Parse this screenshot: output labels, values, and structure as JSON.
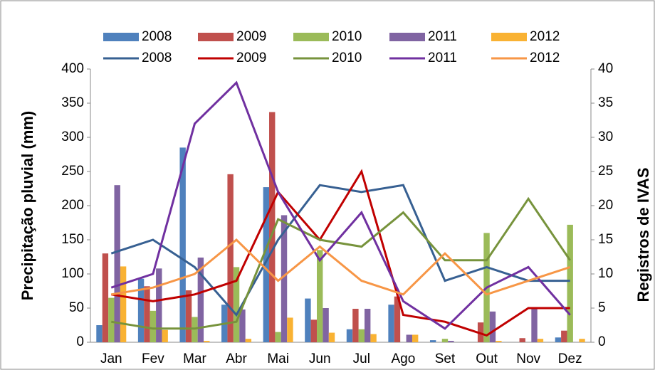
{
  "chart_data": {
    "type": "bar",
    "categories": [
      "Jan",
      "Fev",
      "Mar",
      "Abr",
      "Mai",
      "Jun",
      "Jul",
      "Ago",
      "Set",
      "Out",
      "Nov",
      "Dez"
    ],
    "y_label": "Precipitação  pluvial (mm)",
    "y2_label": "Registros de IVAS",
    "ylim": [
      0,
      400
    ],
    "yticks": [
      0,
      50,
      100,
      150,
      200,
      250,
      300,
      350,
      400
    ],
    "y2lim": [
      0,
      40
    ],
    "y2ticks": [
      0,
      5,
      10,
      15,
      20,
      25,
      30,
      35,
      40
    ],
    "series": [
      {
        "name": "2008",
        "type": "bar",
        "color": "#4f81bd",
        "values": [
          25,
          93,
          285,
          55,
          227,
          64,
          19,
          55,
          3,
          0,
          0,
          7
        ]
      },
      {
        "name": "2009",
        "type": "bar",
        "color": "#c0504d",
        "values": [
          130,
          82,
          76,
          246,
          337,
          33,
          49,
          67,
          0,
          29,
          6,
          17
        ]
      },
      {
        "name": "2010",
        "type": "bar",
        "color": "#9bbb59",
        "values": [
          65,
          46,
          37,
          110,
          15,
          135,
          19,
          0,
          5,
          160,
          0,
          172
        ]
      },
      {
        "name": "2011",
        "type": "bar",
        "color": "#8064a2",
        "values": [
          230,
          108,
          124,
          48,
          186,
          50,
          49,
          11,
          2,
          45,
          50,
          0
        ]
      },
      {
        "name": "2012",
        "type": "bar",
        "color": "#f9b233",
        "values": [
          111,
          18,
          2,
          5,
          36,
          14,
          12,
          11,
          0,
          2,
          5,
          5
        ]
      },
      {
        "name": "2008",
        "type": "line",
        "axis": "y2",
        "color": "#376092",
        "values": [
          13,
          15,
          11,
          4,
          15,
          23,
          22,
          23,
          9,
          11,
          9,
          9
        ]
      },
      {
        "name": "2009",
        "type": "line",
        "axis": "y2",
        "color": "#c00000",
        "values": [
          7,
          6,
          7,
          9,
          22,
          15,
          25,
          4,
          3,
          1,
          5,
          5
        ]
      },
      {
        "name": "2010",
        "type": "line",
        "axis": "y2",
        "color": "#77933c",
        "values": [
          3,
          2,
          2,
          3,
          18,
          15,
          14,
          19,
          12,
          12,
          21,
          12
        ]
      },
      {
        "name": "2011",
        "type": "line",
        "axis": "y2",
        "color": "#7030a0",
        "values": [
          8,
          10,
          32,
          38,
          22,
          12,
          19,
          6,
          2,
          8,
          11,
          4
        ]
      },
      {
        "name": "2012",
        "type": "line",
        "axis": "y2",
        "color": "#f79646",
        "values": [
          7,
          8,
          10,
          15,
          9,
          14,
          9,
          7,
          13,
          7,
          9,
          11
        ]
      }
    ]
  }
}
